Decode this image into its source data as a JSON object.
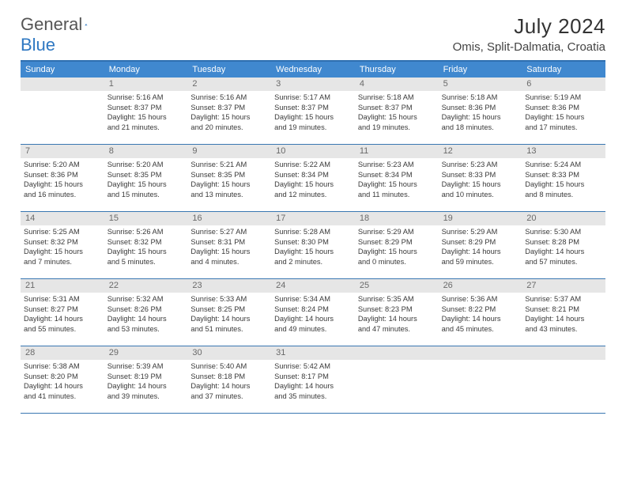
{
  "brand": {
    "name_a": "General",
    "name_b": "Blue",
    "accent_color": "#2f78c2",
    "text_color": "#555"
  },
  "title": "July 2024",
  "location": "Omis, Split-Dalmatia, Croatia",
  "header_colors": {
    "dow_bg": "#4088cf",
    "dow_fg": "#ffffff",
    "rule": "#3a77b2",
    "daynum_bg": "#e6e6e6",
    "daynum_fg": "#6a6a6a"
  },
  "days_of_week": [
    "Sunday",
    "Monday",
    "Tuesday",
    "Wednesday",
    "Thursday",
    "Friday",
    "Saturday"
  ],
  "weeks": [
    [
      {
        "n": "",
        "empty": true
      },
      {
        "n": "1",
        "sunrise": "5:16 AM",
        "sunset": "8:37 PM",
        "daylight": "15 hours and 21 minutes."
      },
      {
        "n": "2",
        "sunrise": "5:16 AM",
        "sunset": "8:37 PM",
        "daylight": "15 hours and 20 minutes."
      },
      {
        "n": "3",
        "sunrise": "5:17 AM",
        "sunset": "8:37 PM",
        "daylight": "15 hours and 19 minutes."
      },
      {
        "n": "4",
        "sunrise": "5:18 AM",
        "sunset": "8:37 PM",
        "daylight": "15 hours and 19 minutes."
      },
      {
        "n": "5",
        "sunrise": "5:18 AM",
        "sunset": "8:36 PM",
        "daylight": "15 hours and 18 minutes."
      },
      {
        "n": "6",
        "sunrise": "5:19 AM",
        "sunset": "8:36 PM",
        "daylight": "15 hours and 17 minutes."
      }
    ],
    [
      {
        "n": "7",
        "sunrise": "5:20 AM",
        "sunset": "8:36 PM",
        "daylight": "15 hours and 16 minutes."
      },
      {
        "n": "8",
        "sunrise": "5:20 AM",
        "sunset": "8:35 PM",
        "daylight": "15 hours and 15 minutes."
      },
      {
        "n": "9",
        "sunrise": "5:21 AM",
        "sunset": "8:35 PM",
        "daylight": "15 hours and 13 minutes."
      },
      {
        "n": "10",
        "sunrise": "5:22 AM",
        "sunset": "8:34 PM",
        "daylight": "15 hours and 12 minutes."
      },
      {
        "n": "11",
        "sunrise": "5:23 AM",
        "sunset": "8:34 PM",
        "daylight": "15 hours and 11 minutes."
      },
      {
        "n": "12",
        "sunrise": "5:23 AM",
        "sunset": "8:33 PM",
        "daylight": "15 hours and 10 minutes."
      },
      {
        "n": "13",
        "sunrise": "5:24 AM",
        "sunset": "8:33 PM",
        "daylight": "15 hours and 8 minutes."
      }
    ],
    [
      {
        "n": "14",
        "sunrise": "5:25 AM",
        "sunset": "8:32 PM",
        "daylight": "15 hours and 7 minutes."
      },
      {
        "n": "15",
        "sunrise": "5:26 AM",
        "sunset": "8:32 PM",
        "daylight": "15 hours and 5 minutes."
      },
      {
        "n": "16",
        "sunrise": "5:27 AM",
        "sunset": "8:31 PM",
        "daylight": "15 hours and 4 minutes."
      },
      {
        "n": "17",
        "sunrise": "5:28 AM",
        "sunset": "8:30 PM",
        "daylight": "15 hours and 2 minutes."
      },
      {
        "n": "18",
        "sunrise": "5:29 AM",
        "sunset": "8:29 PM",
        "daylight": "15 hours and 0 minutes."
      },
      {
        "n": "19",
        "sunrise": "5:29 AM",
        "sunset": "8:29 PM",
        "daylight": "14 hours and 59 minutes."
      },
      {
        "n": "20",
        "sunrise": "5:30 AM",
        "sunset": "8:28 PM",
        "daylight": "14 hours and 57 minutes."
      }
    ],
    [
      {
        "n": "21",
        "sunrise": "5:31 AM",
        "sunset": "8:27 PM",
        "daylight": "14 hours and 55 minutes."
      },
      {
        "n": "22",
        "sunrise": "5:32 AM",
        "sunset": "8:26 PM",
        "daylight": "14 hours and 53 minutes."
      },
      {
        "n": "23",
        "sunrise": "5:33 AM",
        "sunset": "8:25 PM",
        "daylight": "14 hours and 51 minutes."
      },
      {
        "n": "24",
        "sunrise": "5:34 AM",
        "sunset": "8:24 PM",
        "daylight": "14 hours and 49 minutes."
      },
      {
        "n": "25",
        "sunrise": "5:35 AM",
        "sunset": "8:23 PM",
        "daylight": "14 hours and 47 minutes."
      },
      {
        "n": "26",
        "sunrise": "5:36 AM",
        "sunset": "8:22 PM",
        "daylight": "14 hours and 45 minutes."
      },
      {
        "n": "27",
        "sunrise": "5:37 AM",
        "sunset": "8:21 PM",
        "daylight": "14 hours and 43 minutes."
      }
    ],
    [
      {
        "n": "28",
        "sunrise": "5:38 AM",
        "sunset": "8:20 PM",
        "daylight": "14 hours and 41 minutes."
      },
      {
        "n": "29",
        "sunrise": "5:39 AM",
        "sunset": "8:19 PM",
        "daylight": "14 hours and 39 minutes."
      },
      {
        "n": "30",
        "sunrise": "5:40 AM",
        "sunset": "8:18 PM",
        "daylight": "14 hours and 37 minutes."
      },
      {
        "n": "31",
        "sunrise": "5:42 AM",
        "sunset": "8:17 PM",
        "daylight": "14 hours and 35 minutes."
      },
      {
        "n": "",
        "empty": true
      },
      {
        "n": "",
        "empty": true
      },
      {
        "n": "",
        "empty": true
      }
    ]
  ],
  "labels": {
    "sunrise": "Sunrise:",
    "sunset": "Sunset:",
    "daylight": "Daylight:"
  }
}
